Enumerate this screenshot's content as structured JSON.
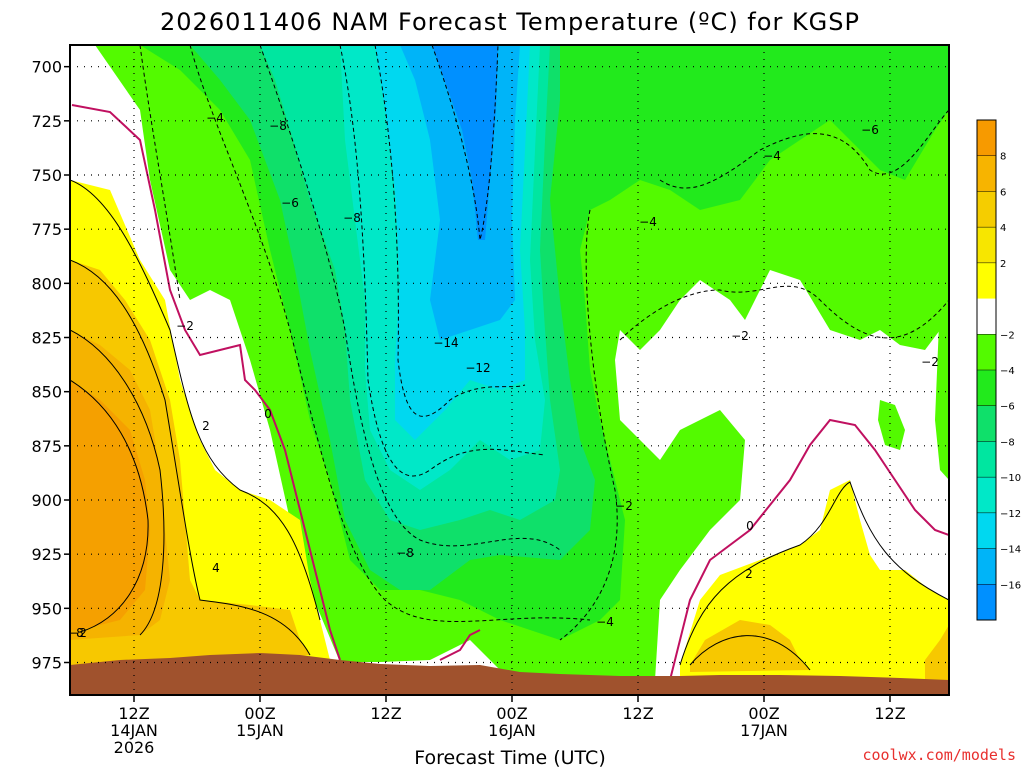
{
  "chart_data": {
    "type": "heatmap",
    "title": "2026011406 NAM Forecast Temperature (ºC) for KGSP",
    "xlabel": "Forecast Time (UTC)",
    "ylabel": "",
    "y_axis": {
      "ticks": [
        700,
        725,
        750,
        775,
        800,
        825,
        850,
        875,
        900,
        925,
        950,
        975
      ],
      "range": [
        690,
        990
      ],
      "inverted": true
    },
    "x_axis": {
      "ticks": [
        {
          "line1": "12Z",
          "line2": "14JAN",
          "line3": "2026"
        },
        {
          "line1": "00Z",
          "line2": "15JAN",
          "line3": ""
        },
        {
          "line1": "12Z",
          "line2": "",
          "line3": ""
        },
        {
          "line1": "00Z",
          "line2": "16JAN",
          "line3": ""
        },
        {
          "line1": "12Z",
          "line2": "",
          "line3": ""
        },
        {
          "line1": "00Z",
          "line2": "17JAN",
          "line3": ""
        },
        {
          "line1": "12Z",
          "line2": "",
          "line3": ""
        }
      ]
    },
    "colorbar": {
      "labels": [
        "8",
        "6",
        "4",
        "2",
        "−2",
        "−4",
        "−6",
        "−8",
        "−10",
        "−12",
        "−14",
        "−16"
      ],
      "colors": [
        "#f79a00",
        "#f7b400",
        "#f5cd00",
        "#f7e600",
        "#ffff00",
        "#ffffff",
        "#53fa00",
        "#22ea1c",
        "#0fe06a",
        "#00e6a0",
        "#00e8c8",
        "#00d8f0",
        "#00b4f8",
        "#0090ff"
      ]
    },
    "contour_labels": [
      "−4",
      "−8",
      "−6",
      "−8",
      "−2",
      "−14",
      "−12",
      "0",
      "2",
      "4",
      "−8",
      "−4",
      "−2",
      "−2",
      "−4",
      "−6",
      "−4",
      "−2",
      "−2",
      "0",
      "2",
      "8"
    ],
    "grid": true
  },
  "credit": "coolwx.com/models",
  "colors": {
    "ground": "#a0522d",
    "freezing_line": "#c01060",
    "warm_orange": "#f5a000",
    "warm_amber": "#f7c200",
    "warm_yellow": "#ffff00",
    "cold_green": "#53fa00",
    "cold_teal": "#00f0a0",
    "cold_cyan": "#00e6e6",
    "cold_blue": "#00a8f8",
    "cold_deep": "#0090ff",
    "credit": "#e8302e"
  }
}
